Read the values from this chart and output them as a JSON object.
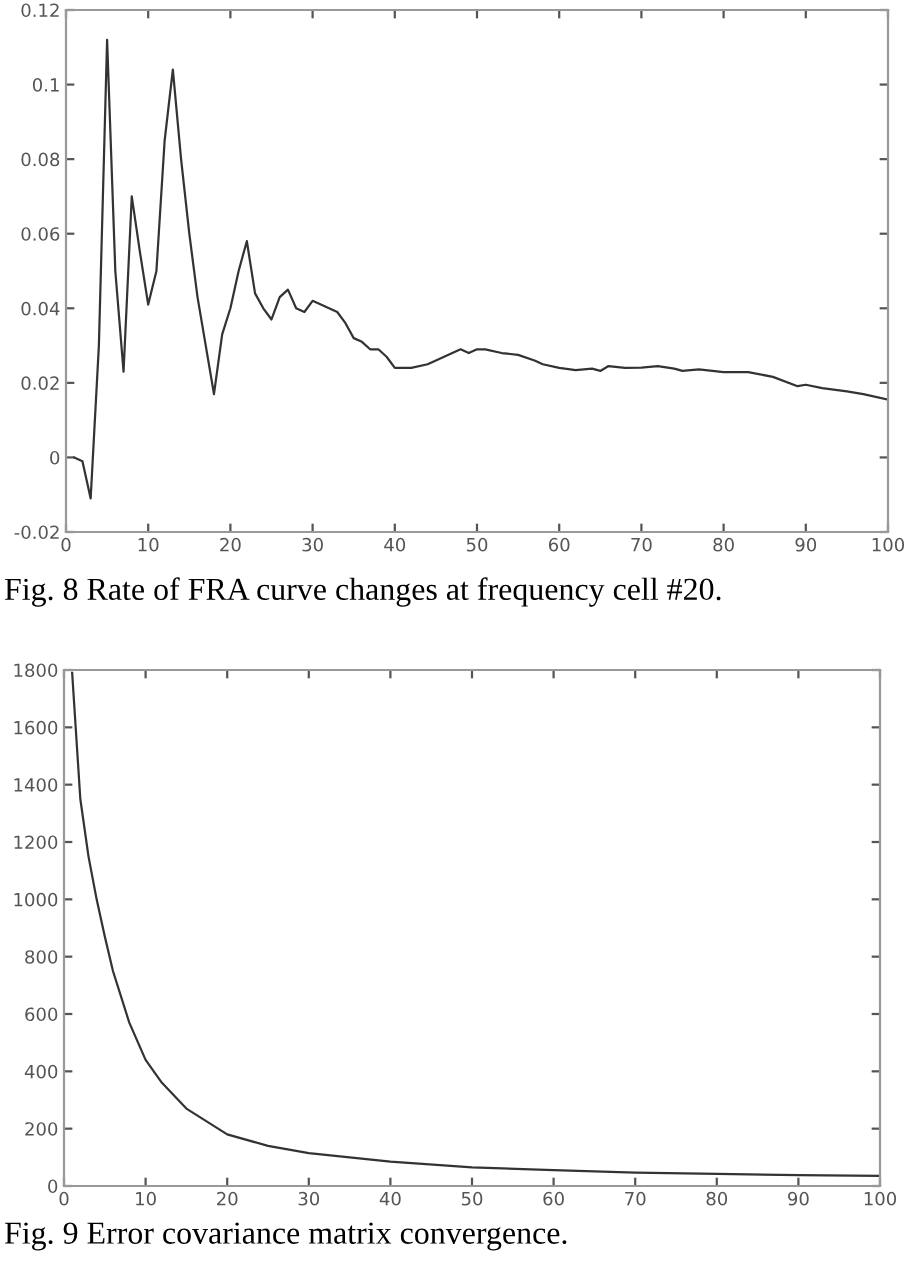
{
  "chart_data": [
    {
      "type": "line",
      "annotations": [
        "Fig. 8 Rate of FRA curve changes at frequency cell #20."
      ],
      "xlim": [
        0,
        100
      ],
      "ylim": [
        -0.02,
        0.12
      ],
      "xticks": [
        0,
        10,
        20,
        30,
        40,
        50,
        60,
        70,
        80,
        90,
        100
      ],
      "yticks": [
        -0.02,
        0,
        0.02,
        0.04,
        0.06,
        0.08,
        0.1,
        0.12
      ],
      "grid": false,
      "series": [
        {
          "color": "#333333",
          "x": [
            1,
            2,
            3,
            4,
            5,
            6,
            7,
            8,
            9,
            10,
            11,
            12,
            13,
            14,
            15,
            16,
            17,
            18,
            19,
            20,
            21,
            22,
            23,
            24,
            25,
            26,
            27,
            28,
            29,
            30,
            31,
            32,
            33,
            34,
            35,
            36,
            37,
            38,
            39,
            40,
            42,
            44,
            46,
            48,
            49,
            50,
            51,
            53,
            55,
            57,
            58,
            60,
            62,
            64,
            65,
            66,
            68,
            70,
            72,
            74,
            75,
            77,
            80,
            83,
            86,
            89,
            90,
            92,
            95,
            97,
            100
          ],
          "values": [
            0,
            -0.001,
            -0.011,
            0.03,
            0.112,
            0.05,
            0.023,
            0.07,
            0.055,
            0.041,
            0.05,
            0.085,
            0.104,
            0.08,
            0.06,
            0.043,
            0.03,
            0.017,
            0.033,
            0.04,
            0.05,
            0.058,
            0.044,
            0.04,
            0.037,
            0.043,
            0.045,
            0.04,
            0.039,
            0.042,
            0.041,
            0.04,
            0.039,
            0.036,
            0.032,
            0.031,
            0.029,
            0.029,
            0.027,
            0.024,
            0.024,
            0.025,
            0.027,
            0.029,
            0.028,
            0.029,
            0.029,
            0.028,
            0.0275,
            0.026,
            0.025,
            0.024,
            0.0234,
            0.0238,
            0.0232,
            0.0245,
            0.024,
            0.0241,
            0.0245,
            0.0238,
            0.0232,
            0.0236,
            0.0229,
            0.0229,
            0.0216,
            0.0191,
            0.0195,
            0.0186,
            0.0177,
            0.017,
            0.0155
          ]
        }
      ]
    },
    {
      "type": "line",
      "annotations": [
        "Fig. 9 Error covariance matrix convergence."
      ],
      "xlim": [
        0,
        100
      ],
      "ylim": [
        0,
        1800
      ],
      "xticks": [
        0,
        10,
        20,
        30,
        40,
        50,
        60,
        70,
        80,
        90,
        100
      ],
      "yticks": [
        0,
        200,
        400,
        600,
        800,
        1000,
        1200,
        1400,
        1600,
        1800
      ],
      "grid": false,
      "series": [
        {
          "color": "#333333",
          "x": [
            1,
            2,
            3,
            4,
            5,
            6,
            8,
            10,
            12,
            15,
            20,
            25,
            30,
            40,
            50,
            60,
            70,
            80,
            90,
            100
          ],
          "values": [
            1790,
            1350,
            1150,
            1000,
            870,
            750,
            570,
            440,
            360,
            270,
            180,
            140,
            115,
            85,
            65,
            55,
            47,
            42,
            38,
            35
          ]
        }
      ]
    }
  ]
}
